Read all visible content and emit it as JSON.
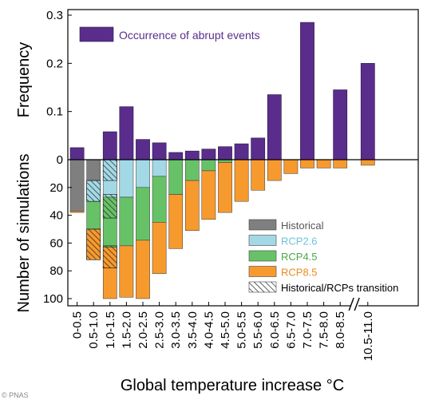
{
  "credit": "© PNAS",
  "chart_data": [
    {
      "type": "bar",
      "panel": "top",
      "ylabel": "Frequency",
      "ylim": [
        0,
        0.3
      ],
      "yticks": [
        0,
        0.1,
        0.2,
        0.3
      ],
      "ytick_labels": [
        "0",
        "0.1",
        "0.2",
        "0.3"
      ],
      "legend": {
        "position": "top-left",
        "entries": [
          "Occurrence of abrupt events"
        ]
      },
      "series": [
        {
          "name": "Occurrence of abrupt events",
          "color": "#5a2d8c",
          "values": [
            0.025,
            0,
            0.058,
            0.11,
            0.042,
            0.035,
            0.015,
            0.018,
            0.022,
            0.027,
            0.033,
            0.045,
            0.135,
            0,
            0.285,
            0,
            0.145,
            0.2
          ]
        }
      ]
    },
    {
      "type": "stacked_bar",
      "panel": "bottom",
      "ylabel": "Number of simulations",
      "xlabel": "Global temperature increase °C",
      "ylim": [
        0,
        100
      ],
      "yticks": [
        0,
        20,
        40,
        60,
        80,
        100
      ],
      "categories": [
        "0-0.5",
        "0.5-1.0",
        "1.0-1.5",
        "1.5-2.0",
        "2.0-2.5",
        "2.5-3.0",
        "3.0-3.5",
        "3.5-4.0",
        "4.0-4.5",
        "4.5-5.0",
        "5.0-5.5",
        "5.5-6.0",
        "6.0-6.5",
        "6.5-7.0",
        "7.0-7.5",
        "7.5-8.0",
        "8.0-8.5",
        "10.5-11.0"
      ],
      "axis_break_after": "8.0-8.5",
      "legend": {
        "position": "bottom-right",
        "entries": [
          {
            "label": "Historical",
            "color": "#7f7f7f",
            "text_color": "#555555"
          },
          {
            "label": "RCP2.6",
            "color": "#a3d9e6",
            "text_color": "#6cc3db"
          },
          {
            "label": "RCP4.5",
            "color": "#67c267",
            "text_color": "#4aa84a"
          },
          {
            "label": "RCP8.5",
            "color": "#f79a2e",
            "text_color": "#ea8a1e"
          },
          {
            "label": "Historical/RCPs transition",
            "color": "hatch",
            "text_color": "#000000"
          }
        ]
      },
      "series": [
        {
          "name": "Historical",
          "color": "#7f7f7f",
          "values": [
            37,
            15,
            0,
            0,
            0,
            0,
            0,
            0,
            0,
            0,
            0,
            0,
            0,
            0,
            0,
            0,
            0,
            0
          ]
        },
        {
          "name": "RCP2.6",
          "color": "#a3d9e6",
          "values": [
            0,
            15,
            27,
            27,
            20,
            12,
            0,
            0,
            0,
            0,
            0,
            0,
            0,
            0,
            0,
            0,
            0,
            0
          ]
        },
        {
          "name": "RCP4.5",
          "color": "#67c267",
          "values": [
            0,
            20,
            36,
            35,
            38,
            33,
            25,
            15,
            8,
            2,
            0,
            0,
            0,
            0,
            0,
            0,
            0,
            0
          ]
        },
        {
          "name": "RCP8.5",
          "color": "#f79a2e",
          "values": [
            1,
            22,
            37,
            37,
            42,
            37,
            39,
            36,
            35,
            36,
            30,
            22,
            15,
            10,
            6,
            6,
            6,
            4
          ]
        }
      ],
      "hatched_ranges": [
        {
          "category": "0.5-1.0",
          "from": 15,
          "to": 30
        },
        {
          "category": "0.5-1.0",
          "from": 50,
          "to": 72
        },
        {
          "category": "1.0-1.5",
          "from": 0,
          "to": 15
        },
        {
          "category": "1.0-1.5",
          "from": 25,
          "to": 42
        },
        {
          "category": "1.0-1.5",
          "from": 62,
          "to": 78
        }
      ]
    }
  ]
}
